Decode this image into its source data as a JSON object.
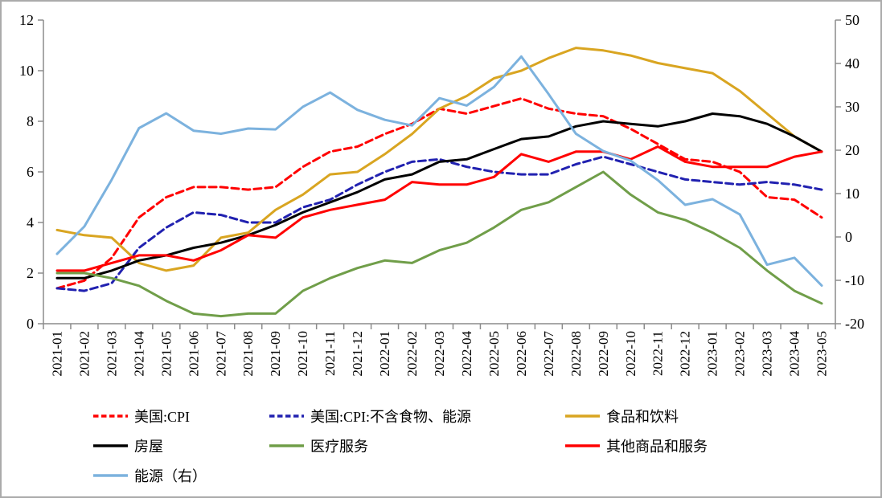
{
  "chart_data": {
    "type": "line",
    "title": "",
    "xlabel": "",
    "ylabel_left": "",
    "ylabel_right": "",
    "grid": false,
    "legend_position": "bottom",
    "axis_color": "#8c8c8c",
    "frame_color": "#ababab",
    "x_categories": [
      "2021-01",
      "2021-02",
      "2021-03",
      "2021-04",
      "2021-05",
      "2021-06",
      "2021-07",
      "2021-08",
      "2021-09",
      "2021-10",
      "2021-11",
      "2021-12",
      "2022-01",
      "2022-02",
      "2022-03",
      "2022-04",
      "2022-05",
      "2022-06",
      "2022-07",
      "2022-08",
      "2022-09",
      "2022-10",
      "2022-11",
      "2022-12",
      "2023-01",
      "2023-02",
      "2023-03",
      "2023-04",
      "2023-05"
    ],
    "left_axis": {
      "min": 0,
      "max": 12,
      "ticks": [
        0,
        2,
        4,
        6,
        8,
        10,
        12
      ]
    },
    "right_axis": {
      "min": -20,
      "max": 50,
      "ticks": [
        -20,
        -10,
        0,
        10,
        20,
        30,
        40,
        50
      ]
    },
    "series": [
      {
        "key": "us-cpi",
        "name": "美国:CPI",
        "axis": "left",
        "color": "#ff0000",
        "dashed": true,
        "values": [
          1.4,
          1.7,
          2.6,
          4.2,
          5.0,
          5.4,
          5.4,
          5.3,
          5.4,
          6.2,
          6.8,
          7.0,
          7.5,
          7.9,
          8.5,
          8.3,
          8.6,
          8.9,
          8.5,
          8.3,
          8.2,
          7.7,
          7.1,
          6.5,
          6.4,
          6.0,
          5.0,
          4.9,
          4.2
        ]
      },
      {
        "key": "us-core-cpi",
        "name": "美国:CPI:不含食物、能源",
        "axis": "left",
        "color": "#2121b0",
        "dashed": true,
        "values": [
          1.4,
          1.3,
          1.6,
          3.0,
          3.8,
          4.4,
          4.3,
          4.0,
          4.0,
          4.6,
          4.9,
          5.5,
          6.0,
          6.4,
          6.5,
          6.2,
          6.0,
          5.9,
          5.9,
          6.3,
          6.6,
          6.3,
          6.0,
          5.7,
          5.6,
          5.5,
          5.6,
          5.5,
          5.3
        ]
      },
      {
        "key": "food-and-beverages",
        "name": "食品和饮料",
        "axis": "left",
        "color": "#d9a521",
        "dashed": false,
        "values": [
          3.7,
          3.5,
          3.4,
          2.4,
          2.1,
          2.3,
          3.4,
          3.6,
          4.5,
          5.1,
          5.9,
          6.0,
          6.7,
          7.5,
          8.5,
          9.0,
          9.7,
          10.0,
          10.5,
          10.9,
          10.8,
          10.6,
          10.3,
          10.1,
          9.9,
          9.2,
          8.3,
          7.4,
          6.8
        ]
      },
      {
        "key": "housing",
        "name": "房屋",
        "axis": "left",
        "color": "#000000",
        "dashed": false,
        "values": [
          1.8,
          1.8,
          2.1,
          2.5,
          2.7,
          3.0,
          3.2,
          3.5,
          3.9,
          4.4,
          4.8,
          5.2,
          5.7,
          5.9,
          6.4,
          6.5,
          6.9,
          7.3,
          7.4,
          7.8,
          8.0,
          7.9,
          7.8,
          8.0,
          8.3,
          8.2,
          7.9,
          7.4,
          6.8
        ]
      },
      {
        "key": "medical-services",
        "name": "医疗服务",
        "axis": "left",
        "color": "#709e49",
        "dashed": false,
        "values": [
          2.0,
          2.0,
          1.8,
          1.5,
          0.9,
          0.4,
          0.3,
          0.4,
          0.4,
          1.3,
          1.8,
          2.2,
          2.5,
          2.4,
          2.9,
          3.2,
          3.8,
          4.5,
          4.8,
          5.4,
          6.0,
          5.1,
          4.4,
          4.1,
          3.6,
          3.0,
          2.1,
          1.3,
          0.8
        ]
      },
      {
        "key": "other-goods-and-services",
        "name": "其他商品和服务",
        "axis": "left",
        "color": "#ff0000",
        "dashed": false,
        "values": [
          2.1,
          2.1,
          2.4,
          2.7,
          2.7,
          2.5,
          2.9,
          3.5,
          3.4,
          4.2,
          4.5,
          4.7,
          4.9,
          5.6,
          5.5,
          5.5,
          5.8,
          6.7,
          6.4,
          6.8,
          6.8,
          6.5,
          7.0,
          6.4,
          6.2,
          6.2,
          6.2,
          6.6,
          6.8
        ]
      },
      {
        "key": "energy-right-axis",
        "name": "能源（右）",
        "axis": "right",
        "color": "#7cb2de",
        "dashed": false,
        "values": [
          -3.9,
          2.4,
          13.2,
          25.1,
          28.5,
          24.5,
          23.8,
          25.0,
          24.8,
          30.0,
          33.3,
          29.3,
          27.0,
          25.7,
          32.0,
          30.3,
          34.6,
          41.6,
          32.9,
          23.8,
          19.8,
          17.6,
          13.1,
          7.4,
          8.7,
          5.2,
          -6.4,
          -4.8,
          -11.2
        ]
      }
    ]
  }
}
